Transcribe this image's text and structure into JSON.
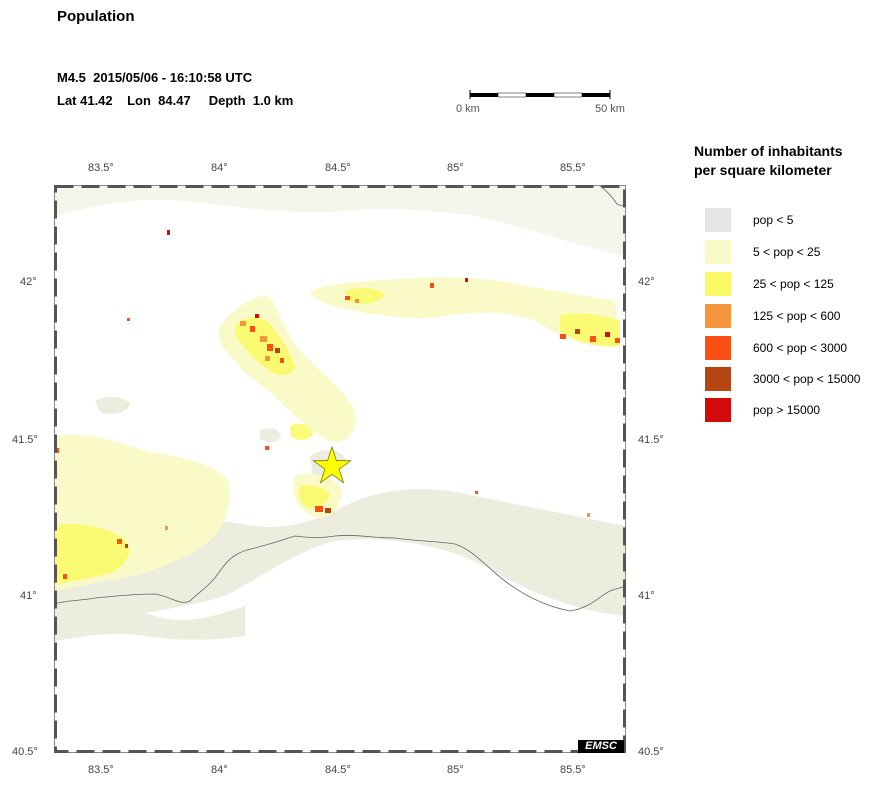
{
  "title": "Population",
  "event": {
    "line1": "M4.5  2015/05/06 - 16:10:58 UTC",
    "line2": "Lat 41.42    Lon  84.47     Depth  1.0 km",
    "lat": 41.42,
    "lon": 84.47
  },
  "scale_bar": {
    "left_label": "0 km",
    "right_label": "50 km"
  },
  "axes": {
    "lon_ticks": [
      "83.5°",
      "84°",
      "84.5°",
      "85°",
      "85.5°"
    ],
    "lat_ticks": [
      "42°",
      "41.5°",
      "41°",
      "40.5°"
    ],
    "lon_range": [
      83.3,
      85.7
    ],
    "lat_range": [
      40.5,
      42.3
    ]
  },
  "legend": {
    "title_line1": "Number of inhabitants",
    "title_line2": "per square kilometer",
    "items": [
      {
        "label": "pop < 5",
        "color": "#e6e6e6"
      },
      {
        "label": "5 < pop < 25",
        "color": "#fafac8"
      },
      {
        "label": "25 < pop < 125",
        "color": "#fafa64"
      },
      {
        "label": "125 < pop < 600",
        "color": "#f5963c"
      },
      {
        "label": "600 < pop < 3000",
        "color": "#fa5014"
      },
      {
        "label": "3000 < pop < 15000",
        "color": "#b44614"
      },
      {
        "label": "pop > 15000",
        "color": "#d20a0a"
      }
    ]
  },
  "epicenter_color": "#ffff00",
  "credit": "EMSC"
}
